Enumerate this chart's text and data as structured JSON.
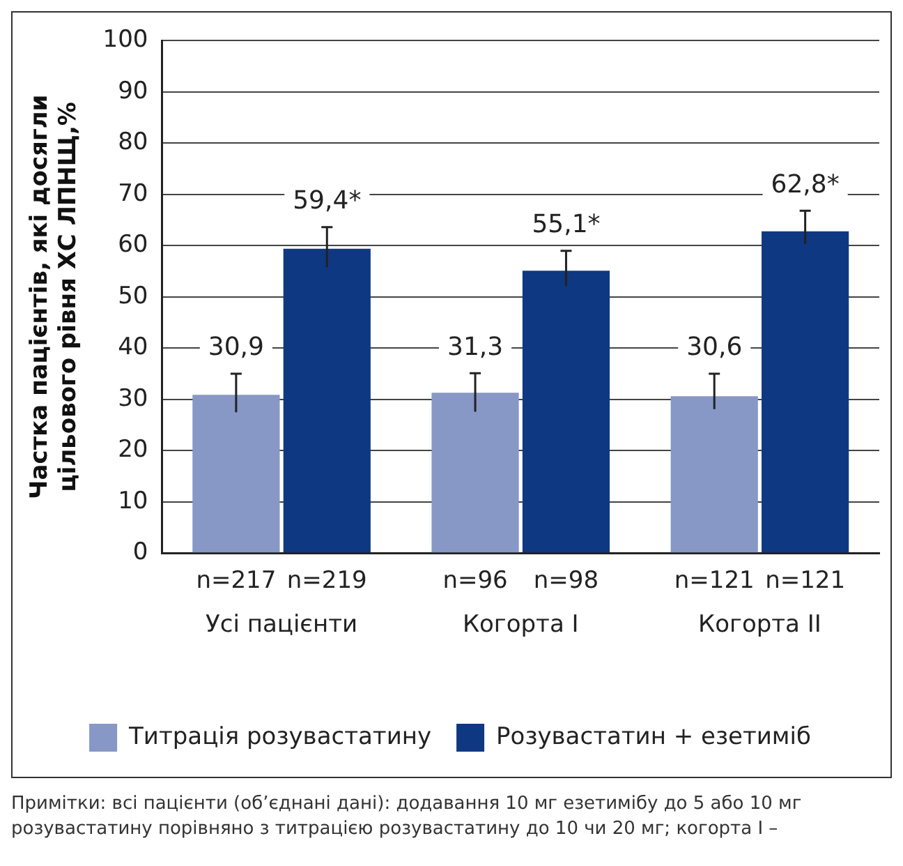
{
  "chart_data": {
    "type": "bar",
    "ylabel": "Частка пацієнтів, які досягли\nцільового рівня ХС ЛПНЩ,%",
    "categories": [
      "Усі пацієнти",
      "Когорта I",
      "Когорта II"
    ],
    "series": [
      {
        "name": "Титрація розувастатину",
        "color": "#8797c6",
        "values": [
          30.9,
          31.3,
          30.6
        ],
        "errors": [
          [
            27.5,
            35.0
          ],
          [
            27.6,
            35.1
          ],
          [
            28.1,
            35.0
          ]
        ],
        "value_labels": [
          "30,9",
          "31,3",
          "30,6"
        ]
      },
      {
        "name": "Розувастатин + езетиміб",
        "color": "#0f3882",
        "values": [
          59.4,
          55.1,
          62.8
        ],
        "errors": [
          [
            55.8,
            63.6
          ],
          [
            52.1,
            59.0
          ],
          [
            60.3,
            66.8
          ]
        ],
        "value_labels": [
          "59,4*",
          "55,1*",
          "62,8*"
        ]
      }
    ],
    "ylim": [
      0,
      100
    ],
    "yticks": [
      0,
      10,
      20,
      30,
      40,
      50,
      60,
      70,
      80,
      90,
      100
    ],
    "grid": "y",
    "legend": "bottom",
    "annotations": [
      "n=217",
      "n=219",
      "n=96",
      "n=98",
      "n=121",
      "n=121",
      "Примітки: всі пацієнти (об’єднані дані): додавання 10 мг езетимібу до 5 або 10 мг розувастатину порівняно з титрацією розувастатину до 10 чи 20 мг; когорта I –"
    ]
  }
}
